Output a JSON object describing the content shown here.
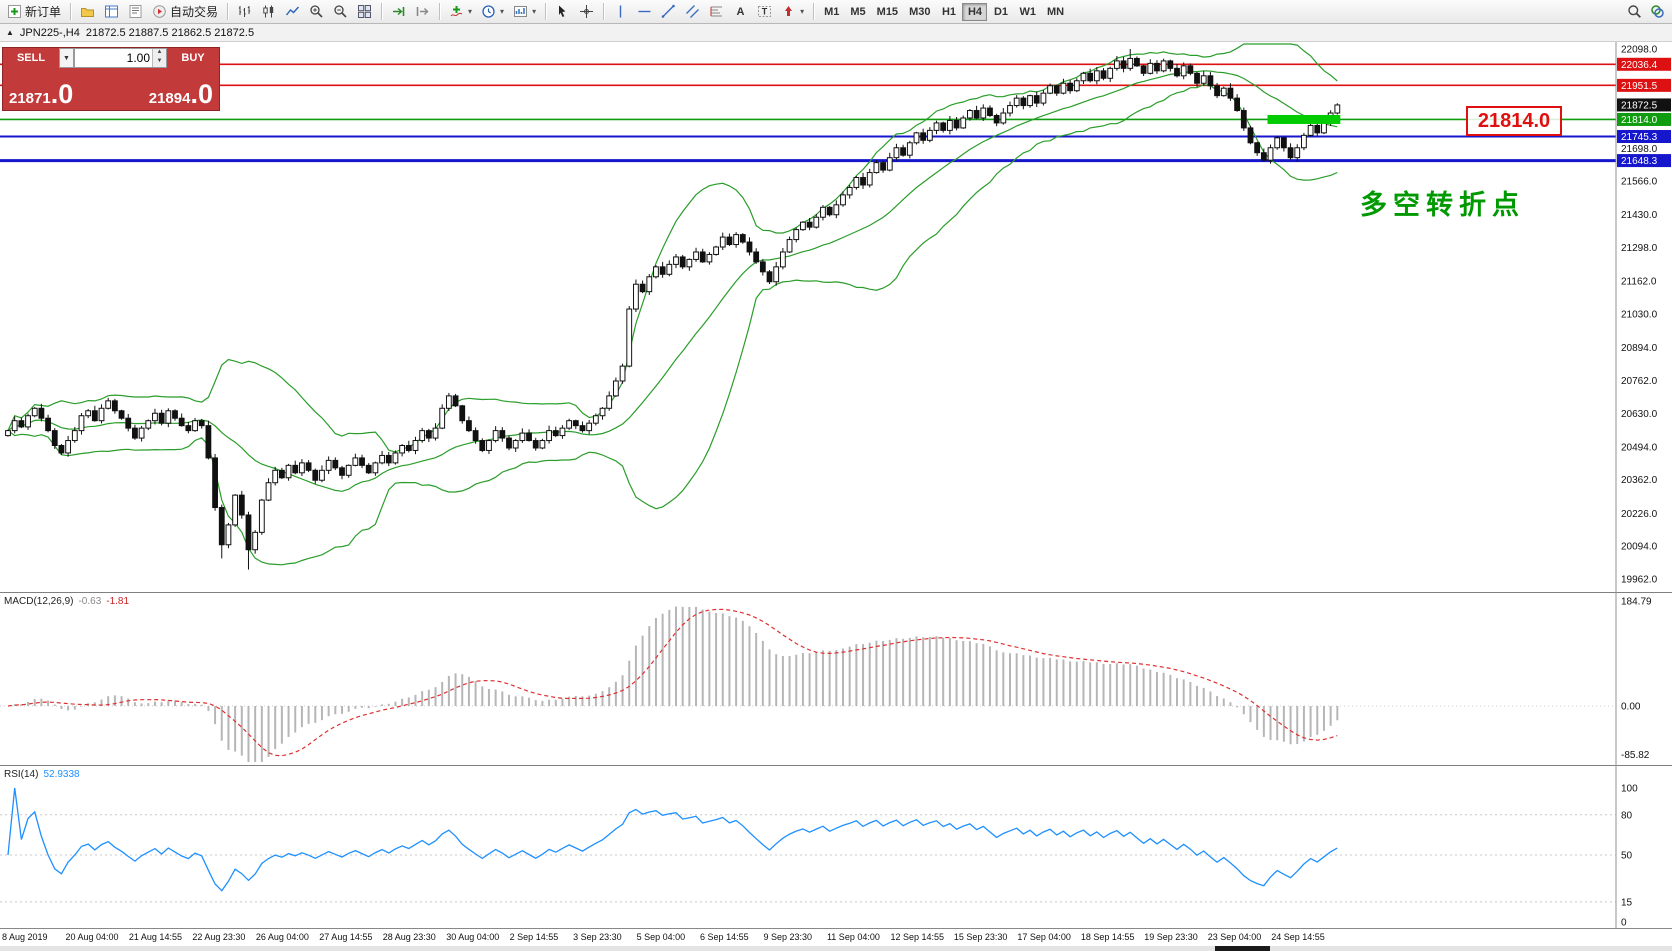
{
  "colors": {
    "panel_red": "#c23a3a",
    "bull_candle": "#ffffff",
    "bear_candle": "#111111",
    "bollinger": "#2a9d2a",
    "macd_hist": "#b6b6b6",
    "macd_signal": "#e03030",
    "rsi_line": "#1e90ff",
    "annotation_red": "#e01010",
    "annotation_green": "#009900",
    "highlight_green": "#00cc00"
  },
  "toolbar": {
    "groups": [
      {
        "name": "trade",
        "items": [
          {
            "name": "new-order-button",
            "icon": "neworder",
            "label": "新订单"
          }
        ]
      },
      {
        "name": "panels",
        "items": [
          {
            "name": "profiles-button",
            "icon": "profiles"
          },
          {
            "name": "market-watch-button",
            "icon": "marketwatch"
          },
          {
            "name": "data-window-button",
            "icon": "datawindow"
          },
          {
            "name": "autotrading-button",
            "icon": "autotrade",
            "label": "自动交易"
          }
        ]
      },
      {
        "name": "chart-type",
        "items": [
          {
            "name": "bar-chart-button",
            "icon": "bars"
          },
          {
            "name": "candlestick-chart-button",
            "icon": "candles"
          },
          {
            "name": "line-chart-button",
            "icon": "linechart"
          },
          {
            "name": "zoom-in-button",
            "icon": "zoomin"
          },
          {
            "name": "zoom-out-button",
            "icon": "zoomout"
          },
          {
            "name": "tile-windows-button",
            "icon": "tile"
          }
        ]
      },
      {
        "name": "scroll",
        "items": [
          {
            "name": "auto-scroll-button",
            "icon": "autoscroll"
          },
          {
            "name": "chart-shift-button",
            "icon": "chartshift"
          }
        ]
      },
      {
        "name": "chart-tools",
        "items": [
          {
            "name": "indicators-button",
            "icon": "indicators",
            "dropdown": true
          },
          {
            "name": "periods-button",
            "icon": "periods",
            "dropdown": true
          },
          {
            "name": "templates-button",
            "icon": "templates",
            "dropdown": true
          }
        ]
      },
      {
        "name": "pointer",
        "items": [
          {
            "name": "cursor-button",
            "icon": "cursor"
          },
          {
            "name": "crosshair-button",
            "icon": "crosshair"
          }
        ]
      },
      {
        "name": "objects",
        "items": [
          {
            "name": "vertical-line-button",
            "icon": "vline"
          },
          {
            "name": "horizontal-line-button",
            "icon": "hline"
          },
          {
            "name": "trendline-button",
            "icon": "trendline"
          },
          {
            "name": "equidistant-channel-button",
            "icon": "channel"
          },
          {
            "name": "fibonacci-button",
            "icon": "fibo"
          },
          {
            "name": "text-button",
            "icon": "textlabel"
          },
          {
            "name": "text-label-button",
            "icon": "textframe"
          },
          {
            "name": "arrows-button",
            "icon": "arrows",
            "dropdown": true
          }
        ]
      }
    ],
    "timeframes": [
      "M1",
      "M5",
      "M15",
      "M30",
      "H1",
      "H4",
      "D1",
      "W1",
      "MN"
    ],
    "active_timeframe": "H4",
    "right_items": [
      {
        "name": "search-button",
        "icon": "search"
      },
      {
        "name": "community-button",
        "icon": "layers"
      }
    ]
  },
  "chart_header": {
    "icon": "▲",
    "symbol": "JPN225-,H4",
    "ohlc": "21872.5 21887.5 21862.5 21872.5"
  },
  "trade_panel": {
    "sell_label": "SELL",
    "buy_label": "BUY",
    "volume": "1.00",
    "sell_price_main": "21871",
    "sell_price_big": ".0",
    "buy_price_main": "21894",
    "buy_price_big": ".0"
  },
  "annotations": {
    "price_box": "21814.0",
    "note": "多空转折点"
  },
  "price_axis": {
    "ticks": [
      22098.0,
      21698.0,
      21566.0,
      21430.0,
      21298.0,
      21162.0,
      21030.0,
      20894.0,
      20762.0,
      20630.0,
      20494.0,
      20362.0,
      20226.0,
      20094.0,
      19962.0
    ],
    "tags": [
      {
        "price": 22036.4,
        "color": "#dd1111"
      },
      {
        "price": 21951.5,
        "color": "#dd1111"
      },
      {
        "price": 21872.5,
        "color": "#111111"
      },
      {
        "price": 21814.0,
        "color": "#0f9d0f"
      },
      {
        "price": 21745.3,
        "color": "#1616cc"
      },
      {
        "price": 21648.3,
        "color": "#1616cc"
      }
    ]
  },
  "macd_panel": {
    "name": "MACD(12,26,9)",
    "value_main": "-0.63",
    "value_signal": "-1.81",
    "axis_labels": [
      "184.79",
      "0.00",
      "-85.82"
    ]
  },
  "rsi_panel": {
    "name": "RSI(14)",
    "value": "52.9338",
    "axis_labels": [
      "100",
      "80",
      "50",
      "15",
      "0"
    ]
  },
  "chart_data": [
    {
      "type": "candlestick",
      "symbol": "JPN225-",
      "timeframe": "H4",
      "ohlc_current": {
        "open": 21872.5,
        "high": 21887.5,
        "low": 21862.5,
        "close": 21872.5
      },
      "ylim": [
        19962.0,
        22098.0
      ],
      "first_open": 20540,
      "closes": [
        20560,
        20600,
        20575,
        20620,
        20650,
        20610,
        20560,
        20500,
        20470,
        20520,
        20560,
        20620,
        20640,
        20600,
        20650,
        20680,
        20640,
        20610,
        20570,
        20530,
        20570,
        20600,
        20630,
        20590,
        20640,
        20610,
        20580,
        20560,
        20600,
        20580,
        20450,
        20250,
        20100,
        20180,
        20300,
        20220,
        20080,
        20150,
        20280,
        20350,
        20400,
        20370,
        20420,
        20390,
        20430,
        20400,
        20360,
        20400,
        20440,
        20410,
        20380,
        20420,
        20450,
        20420,
        20390,
        20430,
        20460,
        20430,
        20470,
        20500,
        20480,
        20520,
        20560,
        20530,
        20570,
        20650,
        20700,
        20660,
        20600,
        20560,
        20520,
        20480,
        20520,
        20560,
        20530,
        20490,
        20520,
        20550,
        20520,
        20490,
        20520,
        20560,
        20540,
        20570,
        20600,
        20580,
        20560,
        20590,
        20620,
        20650,
        20700,
        20760,
        20820,
        21050,
        21150,
        21120,
        21180,
        21220,
        21190,
        21230,
        21260,
        21220,
        21250,
        21280,
        21240,
        21270,
        21300,
        21340,
        21310,
        21350,
        21320,
        21280,
        21240,
        21200,
        21160,
        21220,
        21280,
        21330,
        21370,
        21400,
        21380,
        21420,
        21460,
        21430,
        21470,
        21510,
        21540,
        21580,
        21550,
        21600,
        21640,
        21610,
        21660,
        21700,
        21670,
        21720,
        21760,
        21730,
        21770,
        21800,
        21770,
        21810,
        21780,
        21820,
        21850,
        21820,
        21860,
        21830,
        21800,
        21840,
        21870,
        21900,
        21870,
        21910,
        21880,
        21920,
        21950,
        21920,
        21960,
        21930,
        21970,
        22000,
        21970,
        22010,
        21980,
        22020,
        22050,
        22020,
        22060,
        22030,
        22000,
        22040,
        22010,
        22050,
        22020,
        21990,
        22030,
        22000,
        21960,
        21990,
        21950,
        21910,
        21940,
        21900,
        21850,
        21780,
        21720,
        21680,
        21650,
        21700,
        21740,
        21700,
        21660,
        21700,
        21750,
        21790,
        21760,
        21800,
        21840,
        21872.5
      ],
      "wick_overrides": {
        "32": {
          "low": 20045
        },
        "36": {
          "low": 20000
        },
        "93": {
          "high": 21062
        },
        "168": {
          "high": 22098
        }
      },
      "overlays": {
        "bollinger_period": 20,
        "bollinger_deviation": 2
      },
      "horizontal_lines": [
        {
          "price": 22036.4,
          "color": "#dd1111",
          "width": 1.6
        },
        {
          "price": 21951.5,
          "color": "#dd1111",
          "width": 1.6
        },
        {
          "price": 21814.0,
          "color": "#0f9d0f",
          "width": 1.6
        },
        {
          "price": 21745.3,
          "color": "#1616cc",
          "width": 2
        },
        {
          "price": 21648.3,
          "color": "#1616cc",
          "width": 3
        }
      ],
      "highlight_segment": {
        "price": 21814.0,
        "start_index": 189,
        "end_index": 199,
        "color": "#00cc00",
        "thickness": 9
      },
      "x_labels": [
        "8 Aug 2019",
        "20 Aug 04:00",
        "21 Aug 14:55",
        "22 Aug 23:30",
        "26 Aug 04:00",
        "27 Aug 14:55",
        "28 Aug 23:30",
        "30 Aug 04:00",
        "2 Sep 14:55",
        "3 Sep 23:30",
        "5 Sep 04:00",
        "6 Sep 14:55",
        "9 Sep 23:30",
        "11 Sep 04:00",
        "12 Sep 14:55",
        "15 Sep 23:30",
        "17 Sep 04:00",
        "18 Sep 14:55",
        "19 Sep 23:30",
        "23 Sep 04:00",
        "24 Sep 14:55"
      ]
    },
    {
      "type": "bar",
      "name": "MACD(12,26,9)",
      "params": {
        "fast": 12,
        "slow": 26,
        "signal": 9
      },
      "source": "derived from candlestick closes",
      "current_macd": -0.63,
      "current_signal": -1.81,
      "axis_range": [
        -85.82,
        184.79
      ]
    },
    {
      "type": "line",
      "name": "RSI(14)",
      "period": 14,
      "source": "derived from candlestick closes",
      "current": 52.9338,
      "range": [
        0,
        100
      ],
      "levels": [
        80,
        50,
        15
      ]
    }
  ]
}
